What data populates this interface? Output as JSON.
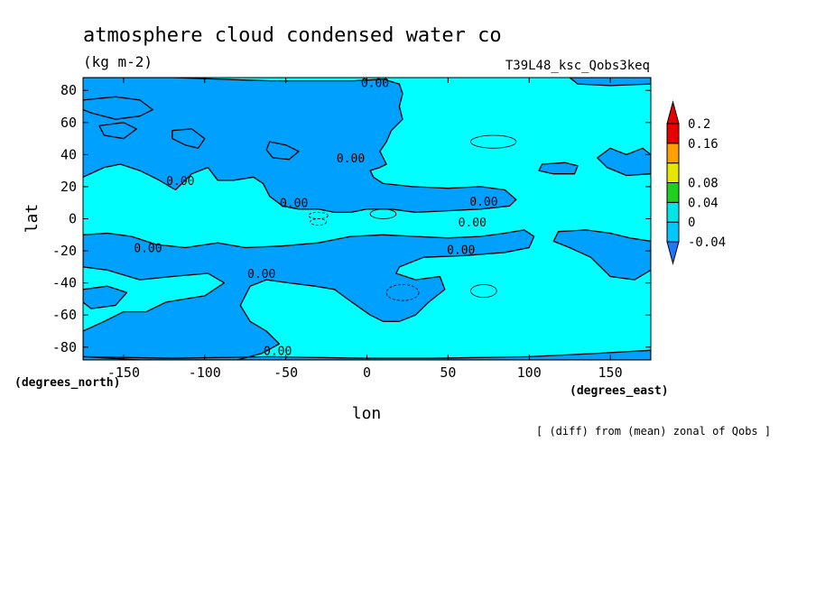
{
  "chart_data": {
    "type": "heatmap",
    "title": "atmosphere cloud condensed water co",
    "units": "(kg m-2)",
    "run_label": "T39L48_ksc_Qobs3keq",
    "xlabel": "lon",
    "ylabel": "lat",
    "x_unit_label": "(degrees_east)",
    "y_unit_label": "(degrees_north)",
    "footnote": "[ (diff) from (mean) zonal of Qobs ]",
    "xlim": [
      -175,
      175
    ],
    "ylim": [
      -88,
      88
    ],
    "x_ticks": [
      -150,
      -100,
      -50,
      0,
      50,
      100,
      150
    ],
    "x_tick_labels": [
      "-150",
      "-100",
      "-50",
      "0",
      "50",
      "100",
      "150"
    ],
    "y_ticks": [
      -80,
      -60,
      -40,
      -20,
      0,
      20,
      40,
      60,
      80
    ],
    "y_tick_labels": [
      "-80",
      "-60",
      "-40",
      "-20",
      "0",
      "20",
      "40",
      "60",
      "80"
    ],
    "colorbar": {
      "levels": [
        -0.04,
        0,
        0.04,
        0.08,
        0.12,
        0.16,
        0.2
      ],
      "labels": [
        "-0.04",
        "0",
        "0.04",
        "0.08",
        "0.16",
        "0.2"
      ],
      "label_levels": [
        -0.04,
        0,
        0.04,
        0.08,
        0.16,
        0.2
      ],
      "colors": [
        "#1e78ff",
        "#00c8ff",
        "#00e6e6",
        "#20d020",
        "#e6e600",
        "#ffa000",
        "#e60000"
      ]
    },
    "field_colors": {
      "negative": "#00a0ff",
      "positive": "#00ffff"
    },
    "contour_labels": [
      {
        "text": "0.00",
        "lon": 5,
        "lat": 85
      },
      {
        "text": "0.00",
        "lon": -10,
        "lat": 38
      },
      {
        "text": "0.00",
        "lon": -115,
        "lat": 24
      },
      {
        "text": "0.00",
        "lon": -45,
        "lat": 10
      },
      {
        "text": "0.00",
        "lon": 72,
        "lat": 11
      },
      {
        "text": "0.00",
        "lon": 65,
        "lat": -2
      },
      {
        "text": "0.00",
        "lon": -135,
        "lat": -18
      },
      {
        "text": "0.00",
        "lon": 58,
        "lat": -19
      },
      {
        "text": "0.00",
        "lon": -65,
        "lat": -34
      },
      {
        "text": "0.00",
        "lon": -55,
        "lat": -82
      }
    ]
  }
}
